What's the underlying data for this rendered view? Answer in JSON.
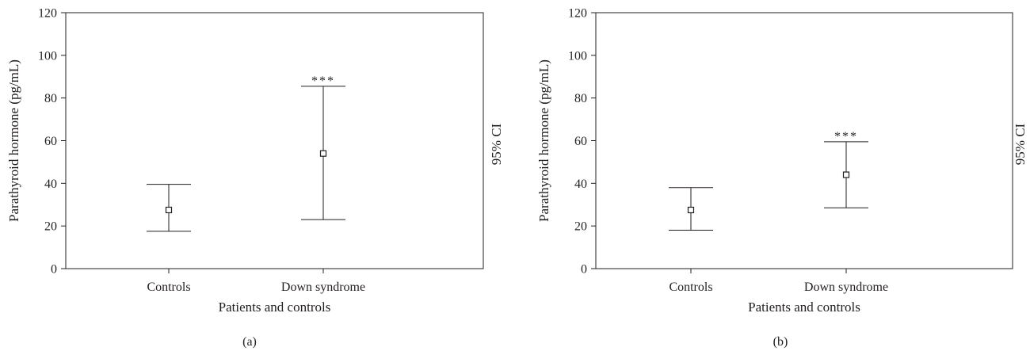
{
  "chart_data": [
    {
      "type": "errorbar",
      "panel_label": "(a)",
      "categories": [
        "Controls",
        "Down syndrome"
      ],
      "mean": [
        27.5,
        54
      ],
      "ci_lower": [
        17.5,
        23
      ],
      "ci_upper": [
        39.5,
        85.5
      ],
      "annotations": [
        "",
        "***"
      ],
      "xlabel": "Patients and controls",
      "ylabel": "Parathyroid hormone (pg/mL)",
      "right_label": "95% CI",
      "ylim": [
        0,
        120
      ],
      "yticks": [
        0,
        20,
        40,
        60,
        80,
        100,
        120
      ],
      "grid": false
    },
    {
      "type": "errorbar",
      "panel_label": "(b)",
      "categories": [
        "Controls",
        "Down syndrome"
      ],
      "mean": [
        27.5,
        44
      ],
      "ci_lower": [
        18,
        28.5
      ],
      "ci_upper": [
        38,
        59.5
      ],
      "annotations": [
        "",
        "***"
      ],
      "xlabel": "Patients and controls",
      "ylabel": "Parathyroid hormone (pg/mL)",
      "right_label": "95% CI",
      "ylim": [
        0,
        120
      ],
      "yticks": [
        0,
        20,
        40,
        60,
        80,
        100,
        120
      ],
      "grid": false
    }
  ]
}
